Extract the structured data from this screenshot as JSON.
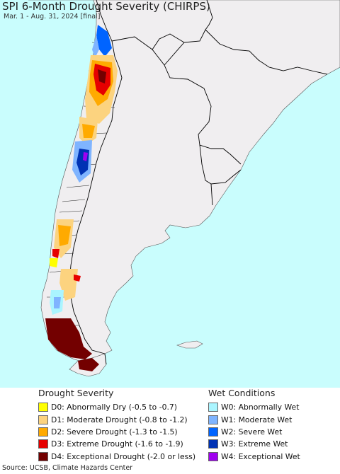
{
  "header": {
    "title": "SPI 6-Month Drought Severity (CHIRPS)",
    "subtitle": "Mar. 1 - Aug. 31, 2024 [final]"
  },
  "colors": {
    "ocean": "#c9fdfd",
    "land": "#f0eef0",
    "border": "#000000"
  },
  "legend": {
    "drought": {
      "title": "Drought Severity",
      "items": [
        {
          "label": "D0: Abnormally Dry (-0.5 to -0.7)",
          "color": "#ffff00"
        },
        {
          "label": "D1: Moderate Drought (-0.8 to -1.2)",
          "color": "#fcd37f"
        },
        {
          "label": "D2: Severe Drought (-1.3 to -1.5)",
          "color": "#ffaa00"
        },
        {
          "label": "D3: Extreme Drought (-1.6 to -1.9)",
          "color": "#e60000"
        },
        {
          "label": "D4: Exceptional Drought (-2.0 or less)",
          "color": "#730000"
        }
      ]
    },
    "wet": {
      "title": "Wet Conditions",
      "items": [
        {
          "label": "W0: Abnormally Wet",
          "color": "#aaf5ff"
        },
        {
          "label": "W1: Moderate Wet",
          "color": "#7fb4ff"
        },
        {
          "label": "W2: Severe Wet",
          "color": "#0064ff"
        },
        {
          "label": "W3: Extreme Wet",
          "color": "#0032b4"
        },
        {
          "label": "W4: Exceptional Wet",
          "color": "#a000f0"
        }
      ]
    }
  },
  "footer": {
    "source": "Source: UCSB, Climate Hazards Center"
  }
}
